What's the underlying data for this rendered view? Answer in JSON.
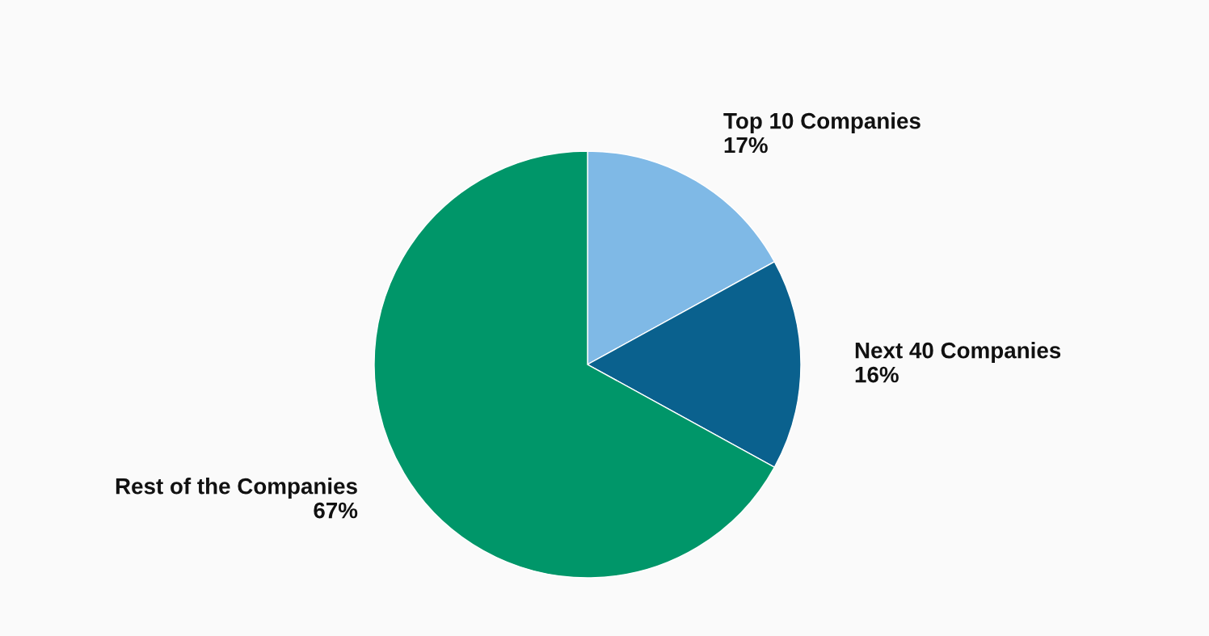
{
  "chart_data": {
    "type": "pie",
    "categories": [
      "Top 10 Companies",
      "Next 40 Companies",
      "Rest of the Companies"
    ],
    "values": [
      17,
      16,
      67
    ],
    "colors": [
      "#7fb9e6",
      "#0a618e",
      "#009669"
    ],
    "value_labels": [
      "17%",
      "16%",
      "67%"
    ]
  }
}
